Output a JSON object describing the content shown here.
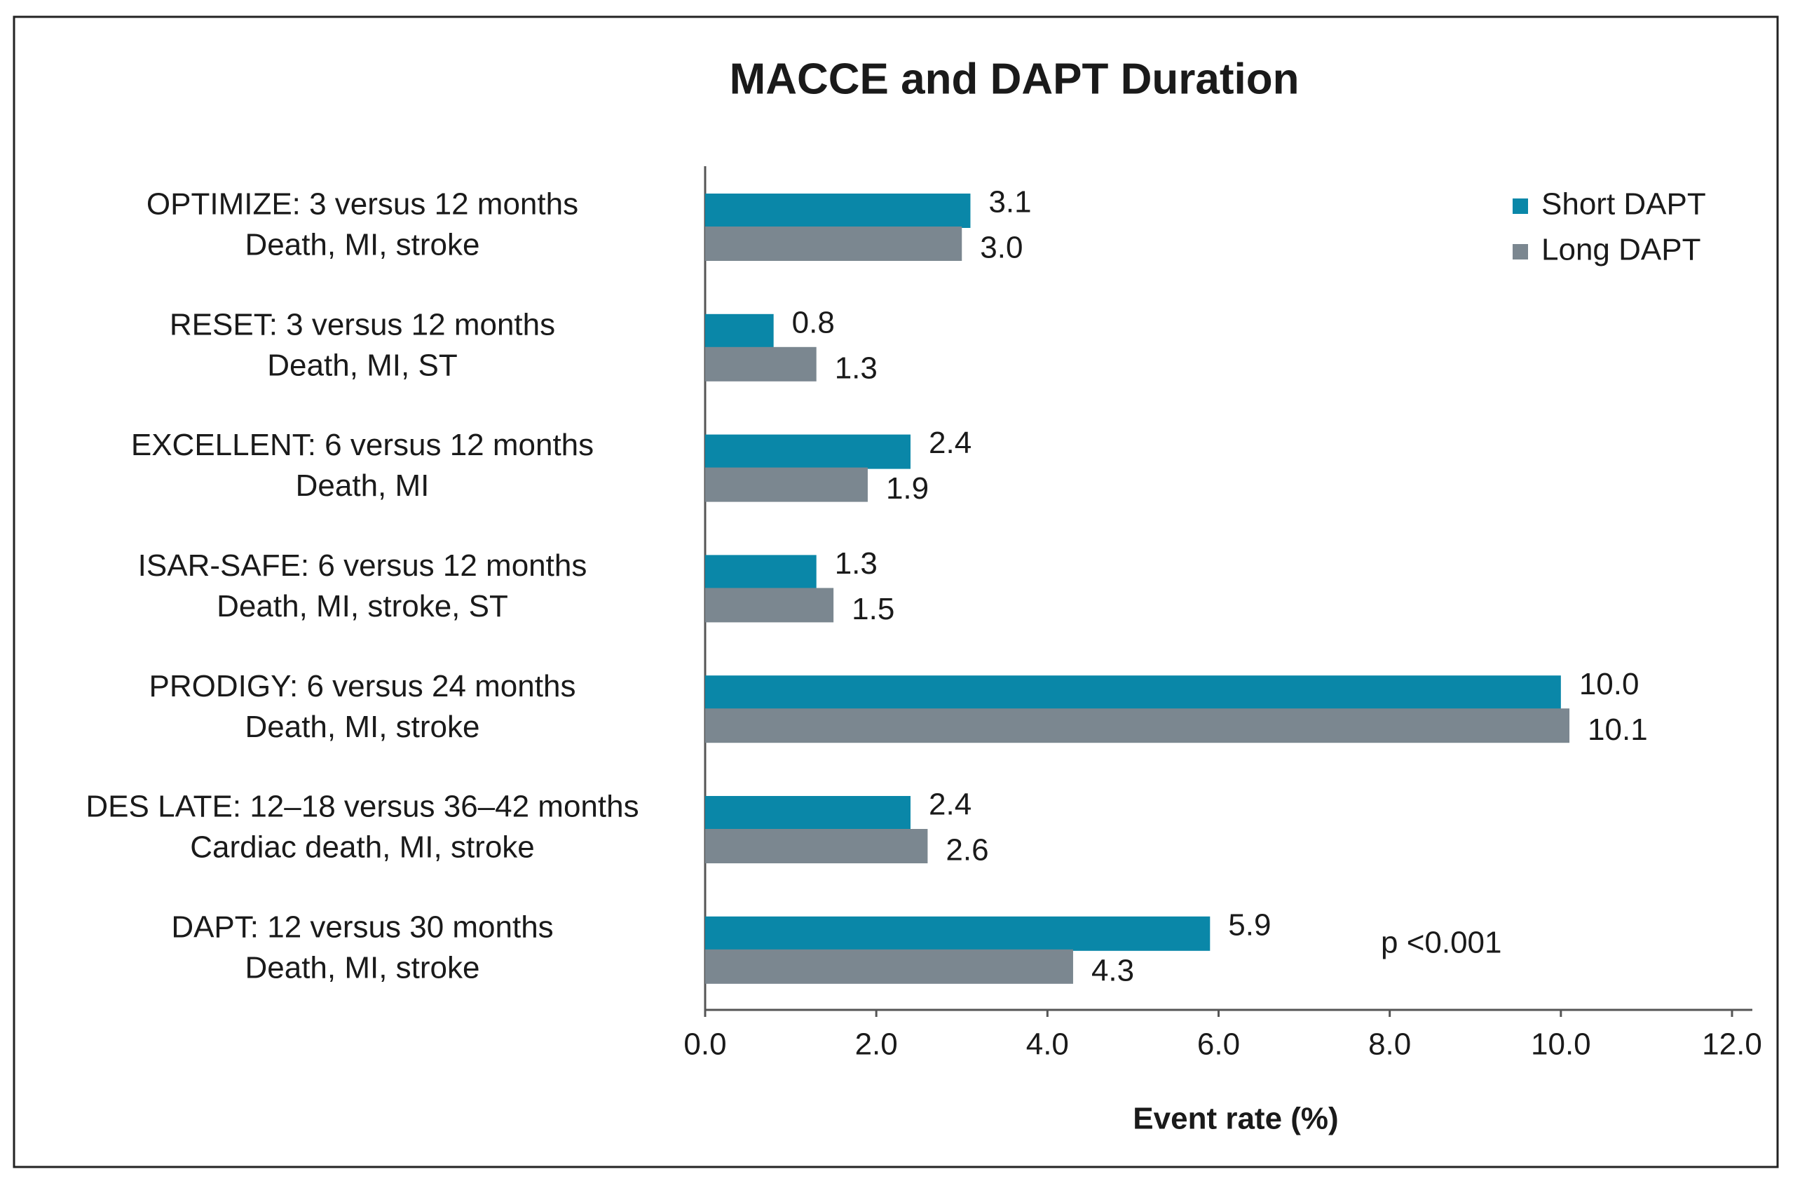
{
  "chart_data": {
    "type": "bar",
    "orientation": "horizontal",
    "title": "MACCE and DAPT Duration",
    "xlabel": "Event rate (%)",
    "annotation": "p <0.001",
    "categories": [
      [
        "OPTIMIZE: 3 versus 12 months",
        "Death, MI, stroke"
      ],
      [
        "RESET: 3 versus 12 months",
        "Death, MI, ST"
      ],
      [
        "EXCELLENT: 6 versus 12 months",
        "Death, MI"
      ],
      [
        "ISAR-SAFE: 6 versus 12 months",
        "Death, MI, stroke, ST"
      ],
      [
        "PRODIGY: 6 versus 24 months",
        "Death, MI, stroke"
      ],
      [
        "DES LATE: 12–18 versus 36–42 months",
        "Cardiac death, MI, stroke"
      ],
      [
        "DAPT: 12 versus 30 months",
        "Death, MI, stroke"
      ]
    ],
    "series": [
      {
        "name": "Short DAPT",
        "color": "#0a87a8",
        "values": [
          3.1,
          0.8,
          2.4,
          1.3,
          10,
          2.4,
          5.9
        ],
        "value_labels": [
          "3.1",
          "0.8",
          "2.4",
          "1.3",
          "10.0",
          "2.4",
          "5.9"
        ]
      },
      {
        "name": "Long DAPT",
        "color": "#7b8790",
        "values": [
          3,
          1.3,
          1.9,
          1.5,
          10.1,
          2.6,
          4.3
        ],
        "value_labels": [
          "3.0",
          "1.3",
          "1.9",
          "1.5",
          "10.1",
          "2.6",
          "4.3"
        ]
      }
    ],
    "xlim": [
      0,
      12
    ],
    "xticks": [
      {
        "value": 0,
        "label": "0.0"
      },
      {
        "value": 2,
        "label": "2.0"
      },
      {
        "value": 4,
        "label": "4.0"
      },
      {
        "value": 6,
        "label": "6.0"
      },
      {
        "value": 8,
        "label": "8.0"
      },
      {
        "value": 10,
        "label": "10.0"
      },
      {
        "value": 12,
        "label": "12.0"
      }
    ],
    "legend": "top-right"
  }
}
